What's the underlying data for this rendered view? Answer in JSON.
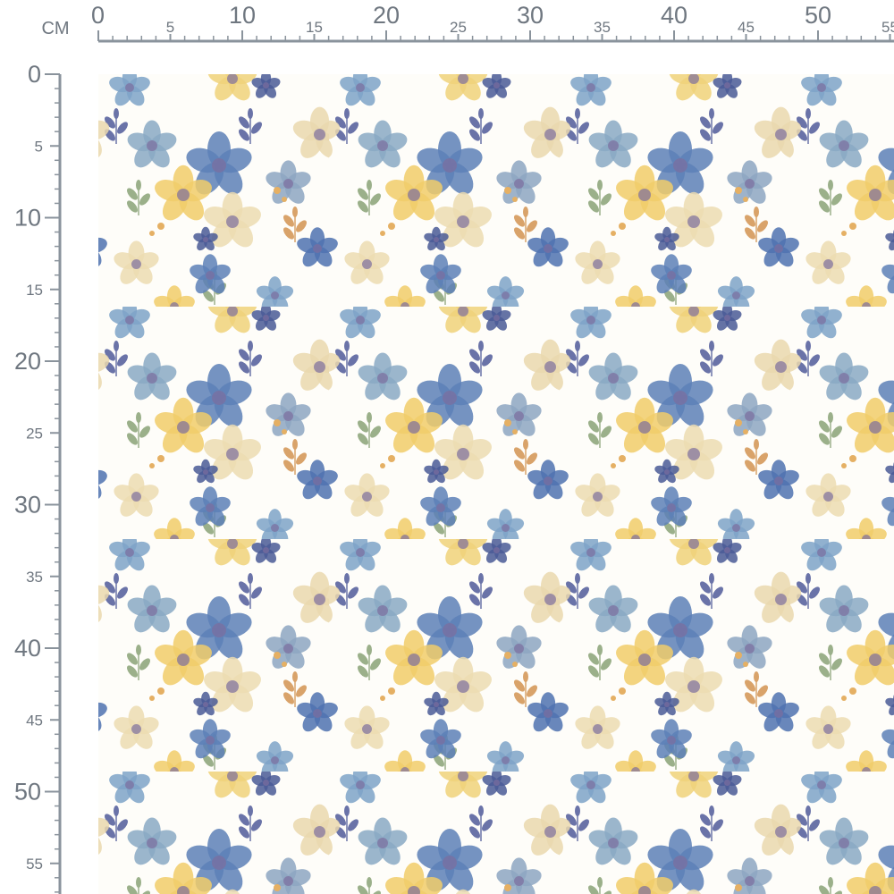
{
  "ruler": {
    "unit": "CM",
    "top": {
      "labels": [
        0,
        5,
        10,
        15,
        20,
        25,
        30,
        35,
        40,
        45,
        50,
        55
      ]
    },
    "left": {
      "labels": [
        0,
        5,
        10,
        15,
        20,
        25,
        30,
        35,
        40,
        45,
        50,
        55
      ]
    }
  }
}
